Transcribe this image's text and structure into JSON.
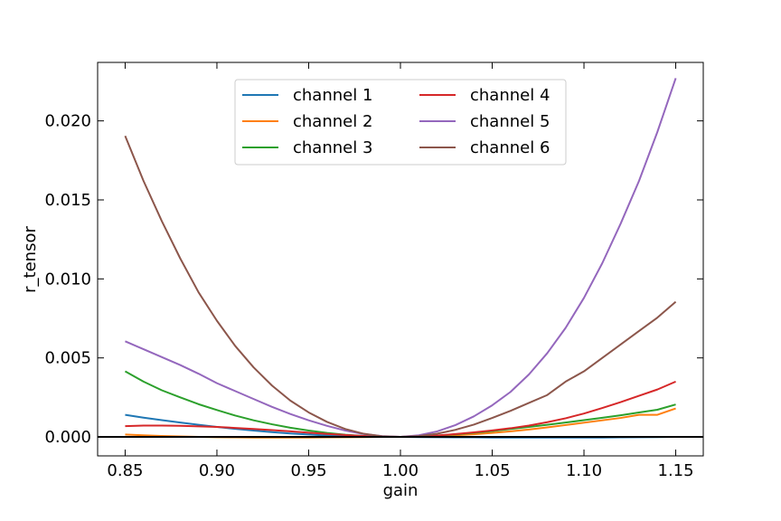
{
  "chart_data": {
    "type": "line",
    "title": "",
    "xlabel": "gain",
    "ylabel": "r_tensor",
    "xlim": [
      0.835,
      1.165
    ],
    "ylim": [
      -0.0012,
      0.0237
    ],
    "xticks": [
      0.85,
      0.9,
      0.95,
      1.0,
      1.05,
      1.1,
      1.15
    ],
    "xtick_labels": [
      "0.85",
      "0.90",
      "0.95",
      "1.00",
      "1.05",
      "1.10",
      "1.15"
    ],
    "yticks": [
      0.0,
      0.005,
      0.01,
      0.015,
      0.02
    ],
    "ytick_labels": [
      "0.000",
      "0.005",
      "0.010",
      "0.015",
      "0.020"
    ],
    "grid": false,
    "legend": "upper-center, 2 columns",
    "reference_line": {
      "y": 0.0,
      "color": "#000000"
    },
    "x": [
      0.85,
      0.86,
      0.87,
      0.88,
      0.89,
      0.9,
      0.91,
      0.92,
      0.93,
      0.94,
      0.95,
      0.96,
      0.97,
      0.98,
      0.99,
      1.0,
      1.01,
      1.02,
      1.03,
      1.04,
      1.05,
      1.06,
      1.07,
      1.08,
      1.09,
      1.1,
      1.11,
      1.12,
      1.13,
      1.14,
      1.15
    ],
    "series": [
      {
        "name": "channel 1",
        "color": "#1f77b4",
        "values": [
          0.0014,
          0.00122,
          0.00106,
          0.00091,
          0.00077,
          0.00063,
          0.00051,
          0.0004,
          0.0003,
          0.00022,
          0.00015,
          9e-05,
          5e-05,
          2e-05,
          0.0,
          0.0,
          -1e-05,
          -2e-05,
          -3e-05,
          -3e-05,
          -4e-05,
          -4e-05,
          -4e-05,
          -4e-05,
          -4e-05,
          -4e-05,
          -4e-05,
          -3e-05,
          -2e-05,
          -1e-05,
          0.0
        ]
      },
      {
        "name": "channel 2",
        "color": "#ff7f0e",
        "values": [
          0.00015,
          0.0001,
          6e-05,
          3e-05,
          0.0,
          -2e-05,
          -3e-05,
          -4e-05,
          -4e-05,
          -4e-05,
          -4e-05,
          -3e-05,
          -2e-05,
          -1e-05,
          0.0,
          0.0,
          2e-05,
          5e-05,
          0.0001,
          0.00017,
          0.00025,
          0.00035,
          0.00047,
          0.0006,
          0.00075,
          0.0009,
          0.00105,
          0.0012,
          0.0014,
          0.0014,
          0.0018
        ]
      },
      {
        "name": "channel 3",
        "color": "#2ca02c",
        "values": [
          0.00415,
          0.0035,
          0.00295,
          0.0025,
          0.00207,
          0.0017,
          0.00135,
          0.00105,
          0.0008,
          0.00058,
          0.0004,
          0.00025,
          0.00014,
          6e-05,
          1e-05,
          0.0,
          2e-05,
          8e-05,
          0.00016,
          0.00026,
          0.00037,
          0.0005,
          0.00063,
          0.00077,
          0.00091,
          0.00106,
          0.00121,
          0.00137,
          0.00155,
          0.00172,
          0.00205
        ]
      },
      {
        "name": "channel 4",
        "color": "#d62728",
        "values": [
          0.00068,
          0.00072,
          0.00072,
          0.0007,
          0.00067,
          0.00063,
          0.00057,
          0.0005,
          0.00043,
          0.00035,
          0.00027,
          0.00019,
          0.00012,
          6e-05,
          2e-05,
          0.0,
          3e-05,
          9e-05,
          0.00018,
          0.00029,
          0.00041,
          0.00055,
          0.00072,
          0.00093,
          0.00118,
          0.00148,
          0.00183,
          0.0022,
          0.0026,
          0.003,
          0.0035
        ]
      },
      {
        "name": "channel 5",
        "color": "#9467bd",
        "values": [
          0.00605,
          0.00555,
          0.00505,
          0.00455,
          0.004,
          0.0034,
          0.0029,
          0.0024,
          0.0019,
          0.00145,
          0.00105,
          0.0007,
          0.0004,
          0.00018,
          5e-05,
          0.0,
          0.0001,
          0.00035,
          0.00075,
          0.0013,
          0.002,
          0.00285,
          0.00395,
          0.0053,
          0.0069,
          0.0088,
          0.011,
          0.0135,
          0.0162,
          0.0193,
          0.0227
        ]
      },
      {
        "name": "channel 6",
        "color": "#8c564b",
        "values": [
          0.01905,
          0.0162,
          0.01365,
          0.0113,
          0.00915,
          0.00735,
          0.00575,
          0.0044,
          0.00325,
          0.0023,
          0.00155,
          0.00095,
          0.0005,
          0.0002,
          4e-05,
          0.0,
          5e-05,
          0.0002,
          0.00045,
          0.00078,
          0.0012,
          0.00165,
          0.00215,
          0.00265,
          0.0035,
          0.00415,
          0.005,
          0.00585,
          0.0067,
          0.00755,
          0.00855
        ]
      }
    ]
  }
}
